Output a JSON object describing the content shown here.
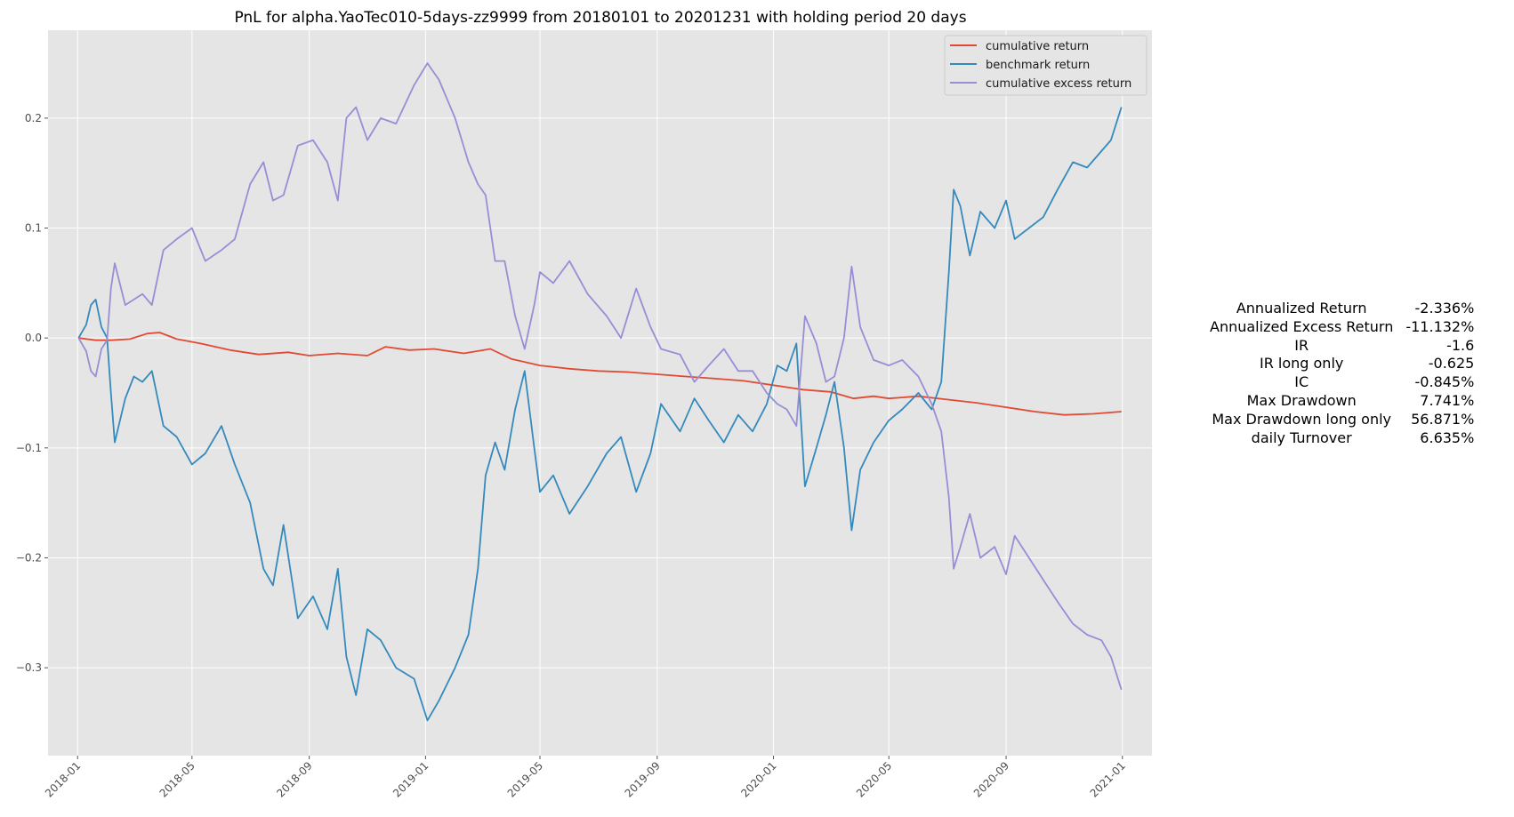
{
  "chart_data": {
    "type": "line",
    "title": "PnL for alpha.YaoTec010-5days-zz9999 from 20180101 to 20201231 with holding period 20 days",
    "xlabel": "",
    "ylabel": "",
    "xlim": [
      "2017-12-01",
      "2021-02-01"
    ],
    "ylim": [
      -0.38,
      0.28
    ],
    "x_ticks": [
      "2018-01",
      "2018-05",
      "2018-09",
      "2019-01",
      "2019-05",
      "2019-09",
      "2020-01",
      "2020-05",
      "2020-09",
      "2021-01"
    ],
    "y_ticks": [
      0.2,
      0.1,
      0.0,
      -0.1,
      -0.2,
      -0.3
    ],
    "y_tick_labels": [
      "0.2",
      "0.1",
      "0.0",
      "−0.1",
      "−0.2",
      "−0.3"
    ],
    "grid": true,
    "legend_position": "top-right",
    "series": [
      {
        "name": "cumulative return",
        "color": "#E24A33",
        "points": [
          [
            "2018-01-02",
            0.0
          ],
          [
            "2018-01-20",
            -0.002
          ],
          [
            "2018-02-05",
            -0.002
          ],
          [
            "2018-02-25",
            -0.001
          ],
          [
            "2018-03-15",
            0.004
          ],
          [
            "2018-03-28",
            0.005
          ],
          [
            "2018-04-15",
            -0.001
          ],
          [
            "2018-05-10",
            -0.005
          ],
          [
            "2018-06-10",
            -0.011
          ],
          [
            "2018-07-10",
            -0.015
          ],
          [
            "2018-08-10",
            -0.013
          ],
          [
            "2018-09-01",
            -0.016
          ],
          [
            "2018-10-01",
            -0.014
          ],
          [
            "2018-11-01",
            -0.016
          ],
          [
            "2018-11-20",
            -0.008
          ],
          [
            "2018-12-15",
            -0.011
          ],
          [
            "2019-01-10",
            -0.01
          ],
          [
            "2019-02-10",
            -0.014
          ],
          [
            "2019-03-10",
            -0.01
          ],
          [
            "2019-04-01",
            -0.019
          ],
          [
            "2019-05-01",
            -0.025
          ],
          [
            "2019-06-01",
            -0.028
          ],
          [
            "2019-07-01",
            -0.03
          ],
          [
            "2019-08-01",
            -0.031
          ],
          [
            "2019-09-01",
            -0.033
          ],
          [
            "2019-10-01",
            -0.035
          ],
          [
            "2019-11-01",
            -0.037
          ],
          [
            "2019-12-01",
            -0.039
          ],
          [
            "2020-01-01",
            -0.043
          ],
          [
            "2020-02-01",
            -0.047
          ],
          [
            "2020-03-01",
            -0.049
          ],
          [
            "2020-03-25",
            -0.055
          ],
          [
            "2020-04-15",
            -0.053
          ],
          [
            "2020-05-01",
            -0.055
          ],
          [
            "2020-06-01",
            -0.053
          ],
          [
            "2020-07-01",
            -0.056
          ],
          [
            "2020-08-01",
            -0.059
          ],
          [
            "2020-09-01",
            -0.063
          ],
          [
            "2020-10-01",
            -0.067
          ],
          [
            "2020-11-01",
            -0.07
          ],
          [
            "2020-12-01",
            -0.069
          ],
          [
            "2020-12-31",
            -0.067
          ]
        ]
      },
      {
        "name": "benchmark return",
        "color": "#348ABD",
        "points": [
          [
            "2018-01-02",
            0.0
          ],
          [
            "2018-01-10",
            0.012
          ],
          [
            "2018-01-15",
            0.03
          ],
          [
            "2018-01-20",
            0.035
          ],
          [
            "2018-01-26",
            0.01
          ],
          [
            "2018-02-01",
            0.0
          ],
          [
            "2018-02-05",
            -0.05
          ],
          [
            "2018-02-09",
            -0.095
          ],
          [
            "2018-02-20",
            -0.055
          ],
          [
            "2018-03-01",
            -0.035
          ],
          [
            "2018-03-10",
            -0.04
          ],
          [
            "2018-03-20",
            -0.03
          ],
          [
            "2018-04-01",
            -0.08
          ],
          [
            "2018-04-15",
            -0.09
          ],
          [
            "2018-05-01",
            -0.115
          ],
          [
            "2018-05-15",
            -0.105
          ],
          [
            "2018-06-01",
            -0.08
          ],
          [
            "2018-06-15",
            -0.115
          ],
          [
            "2018-07-01",
            -0.15
          ],
          [
            "2018-07-15",
            -0.21
          ],
          [
            "2018-07-25",
            -0.225
          ],
          [
            "2018-08-05",
            -0.17
          ],
          [
            "2018-08-20",
            -0.255
          ],
          [
            "2018-09-05",
            -0.235
          ],
          [
            "2018-09-20",
            -0.265
          ],
          [
            "2018-10-01",
            -0.21
          ],
          [
            "2018-10-10",
            -0.29
          ],
          [
            "2018-10-20",
            -0.325
          ],
          [
            "2018-11-01",
            -0.265
          ],
          [
            "2018-11-15",
            -0.275
          ],
          [
            "2018-12-01",
            -0.3
          ],
          [
            "2018-12-20",
            -0.31
          ],
          [
            "2019-01-03",
            -0.348
          ],
          [
            "2019-01-15",
            -0.33
          ],
          [
            "2019-02-01",
            -0.3
          ],
          [
            "2019-02-15",
            -0.27
          ],
          [
            "2019-02-25",
            -0.21
          ],
          [
            "2019-03-05",
            -0.125
          ],
          [
            "2019-03-15",
            -0.095
          ],
          [
            "2019-03-25",
            -0.12
          ],
          [
            "2019-04-05",
            -0.065
          ],
          [
            "2019-04-15",
            -0.03
          ],
          [
            "2019-04-25",
            -0.1
          ],
          [
            "2019-05-01",
            -0.14
          ],
          [
            "2019-05-15",
            -0.125
          ],
          [
            "2019-06-01",
            -0.16
          ],
          [
            "2019-06-20",
            -0.135
          ],
          [
            "2019-07-10",
            -0.105
          ],
          [
            "2019-07-25",
            -0.09
          ],
          [
            "2019-08-10",
            -0.14
          ],
          [
            "2019-08-25",
            -0.105
          ],
          [
            "2019-09-05",
            -0.06
          ],
          [
            "2019-09-25",
            -0.085
          ],
          [
            "2019-10-10",
            -0.055
          ],
          [
            "2019-10-25",
            -0.075
          ],
          [
            "2019-11-10",
            -0.095
          ],
          [
            "2019-11-25",
            -0.07
          ],
          [
            "2019-12-10",
            -0.085
          ],
          [
            "2019-12-25",
            -0.06
          ],
          [
            "2020-01-05",
            -0.025
          ],
          [
            "2020-01-15",
            -0.03
          ],
          [
            "2020-01-25",
            -0.005
          ],
          [
            "2020-02-03",
            -0.135
          ],
          [
            "2020-02-15",
            -0.1
          ],
          [
            "2020-02-25",
            -0.07
          ],
          [
            "2020-03-05",
            -0.04
          ],
          [
            "2020-03-15",
            -0.1
          ],
          [
            "2020-03-23",
            -0.175
          ],
          [
            "2020-04-01",
            -0.12
          ],
          [
            "2020-04-15",
            -0.095
          ],
          [
            "2020-05-01",
            -0.075
          ],
          [
            "2020-05-15",
            -0.065
          ],
          [
            "2020-06-01",
            -0.05
          ],
          [
            "2020-06-15",
            -0.065
          ],
          [
            "2020-06-25",
            -0.04
          ],
          [
            "2020-07-03",
            0.06
          ],
          [
            "2020-07-08",
            0.135
          ],
          [
            "2020-07-15",
            0.12
          ],
          [
            "2020-07-25",
            0.075
          ],
          [
            "2020-08-05",
            0.115
          ],
          [
            "2020-08-20",
            0.1
          ],
          [
            "2020-09-01",
            0.125
          ],
          [
            "2020-09-10",
            0.09
          ],
          [
            "2020-09-25",
            0.1
          ],
          [
            "2020-10-10",
            0.11
          ],
          [
            "2020-10-25",
            0.135
          ],
          [
            "2020-11-10",
            0.16
          ],
          [
            "2020-11-25",
            0.155
          ],
          [
            "2020-12-10",
            0.17
          ],
          [
            "2020-12-20",
            0.18
          ],
          [
            "2020-12-31",
            0.21
          ]
        ]
      },
      {
        "name": "cumulative excess return",
        "color": "#988ED5",
        "points": [
          [
            "2018-01-02",
            0.0
          ],
          [
            "2018-01-10",
            -0.012
          ],
          [
            "2018-01-15",
            -0.03
          ],
          [
            "2018-01-20",
            -0.035
          ],
          [
            "2018-01-26",
            -0.01
          ],
          [
            "2018-02-01",
            -0.002
          ],
          [
            "2018-02-05",
            0.045
          ],
          [
            "2018-02-09",
            0.068
          ],
          [
            "2018-02-20",
            0.03
          ],
          [
            "2018-03-01",
            0.035
          ],
          [
            "2018-03-10",
            0.04
          ],
          [
            "2018-03-20",
            0.03
          ],
          [
            "2018-04-01",
            0.08
          ],
          [
            "2018-04-15",
            0.09
          ],
          [
            "2018-05-01",
            0.1
          ],
          [
            "2018-05-15",
            0.07
          ],
          [
            "2018-06-01",
            0.08
          ],
          [
            "2018-06-15",
            0.09
          ],
          [
            "2018-07-01",
            0.14
          ],
          [
            "2018-07-15",
            0.16
          ],
          [
            "2018-07-25",
            0.125
          ],
          [
            "2018-08-05",
            0.13
          ],
          [
            "2018-08-20",
            0.175
          ],
          [
            "2018-09-05",
            0.18
          ],
          [
            "2018-09-20",
            0.16
          ],
          [
            "2018-10-01",
            0.125
          ],
          [
            "2018-10-10",
            0.2
          ],
          [
            "2018-10-20",
            0.21
          ],
          [
            "2018-11-01",
            0.18
          ],
          [
            "2018-11-15",
            0.2
          ],
          [
            "2018-12-01",
            0.195
          ],
          [
            "2018-12-20",
            0.23
          ],
          [
            "2019-01-03",
            0.25
          ],
          [
            "2019-01-15",
            0.235
          ],
          [
            "2019-02-01",
            0.2
          ],
          [
            "2019-02-15",
            0.16
          ],
          [
            "2019-02-25",
            0.14
          ],
          [
            "2019-03-05",
            0.13
          ],
          [
            "2019-03-15",
            0.07
          ],
          [
            "2019-03-25",
            0.07
          ],
          [
            "2019-04-05",
            0.02
          ],
          [
            "2019-04-15",
            -0.01
          ],
          [
            "2019-04-25",
            0.03
          ],
          [
            "2019-05-01",
            0.06
          ],
          [
            "2019-05-15",
            0.05
          ],
          [
            "2019-06-01",
            0.07
          ],
          [
            "2019-06-20",
            0.04
          ],
          [
            "2019-07-10",
            0.02
          ],
          [
            "2019-07-25",
            0.0
          ],
          [
            "2019-08-10",
            0.045
          ],
          [
            "2019-08-25",
            0.01
          ],
          [
            "2019-09-05",
            -0.01
          ],
          [
            "2019-09-25",
            -0.015
          ],
          [
            "2019-10-10",
            -0.04
          ],
          [
            "2019-10-25",
            -0.025
          ],
          [
            "2019-11-10",
            -0.01
          ],
          [
            "2019-11-25",
            -0.03
          ],
          [
            "2019-12-10",
            -0.03
          ],
          [
            "2019-12-25",
            -0.05
          ],
          [
            "2020-01-05",
            -0.06
          ],
          [
            "2020-01-15",
            -0.065
          ],
          [
            "2020-01-25",
            -0.08
          ],
          [
            "2020-02-03",
            0.02
          ],
          [
            "2020-02-15",
            -0.005
          ],
          [
            "2020-02-25",
            -0.04
          ],
          [
            "2020-03-05",
            -0.035
          ],
          [
            "2020-03-15",
            0.0
          ],
          [
            "2020-03-23",
            0.065
          ],
          [
            "2020-04-01",
            0.01
          ],
          [
            "2020-04-15",
            -0.02
          ],
          [
            "2020-05-01",
            -0.025
          ],
          [
            "2020-05-15",
            -0.02
          ],
          [
            "2020-06-01",
            -0.035
          ],
          [
            "2020-06-15",
            -0.06
          ],
          [
            "2020-06-25",
            -0.085
          ],
          [
            "2020-07-03",
            -0.145
          ],
          [
            "2020-07-08",
            -0.21
          ],
          [
            "2020-07-15",
            -0.19
          ],
          [
            "2020-07-25",
            -0.16
          ],
          [
            "2020-08-05",
            -0.2
          ],
          [
            "2020-08-20",
            -0.19
          ],
          [
            "2020-09-01",
            -0.215
          ],
          [
            "2020-09-10",
            -0.18
          ],
          [
            "2020-09-25",
            -0.2
          ],
          [
            "2020-10-10",
            -0.22
          ],
          [
            "2020-10-25",
            -0.24
          ],
          [
            "2020-11-10",
            -0.26
          ],
          [
            "2020-11-25",
            -0.27
          ],
          [
            "2020-12-10",
            -0.275
          ],
          [
            "2020-12-20",
            -0.29
          ],
          [
            "2020-12-31",
            -0.32
          ]
        ]
      }
    ]
  },
  "stats": [
    {
      "label": "Annualized Return",
      "value": "-2.336%"
    },
    {
      "label": "Annualized Excess Return",
      "value": "-11.132%"
    },
    {
      "label": "IR",
      "value": "-1.6"
    },
    {
      "label": "IR long only",
      "value": "-0.625"
    },
    {
      "label": "IC",
      "value": "-0.845%"
    },
    {
      "label": "Max Drawdown",
      "value": "7.741%"
    },
    {
      "label": "Max Drawdown long only",
      "value": "56.871%"
    },
    {
      "label": "daily Turnover",
      "value": "6.635%"
    }
  ],
  "colors": {
    "plot_background": "#E5E5E5",
    "grid": "#FFFFFF"
  }
}
